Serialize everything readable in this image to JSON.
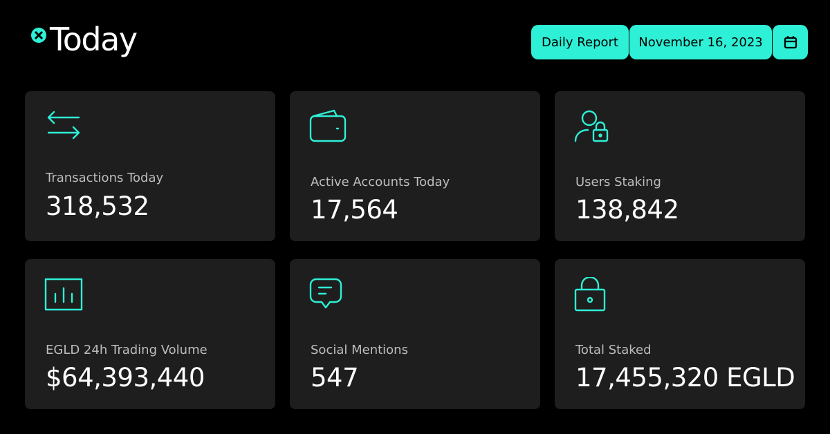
{
  "header": {
    "title": "Today",
    "report": "Daily Report",
    "date": "November 16, 2023"
  },
  "cards": [
    {
      "label": "Transactions Today",
      "value": "318,532"
    },
    {
      "label": "Active Accounts Today",
      "value": "17,564"
    },
    {
      "label": "Users Staking",
      "value": "138,842"
    },
    {
      "label": "EGLD 24h Trading Volume",
      "value": "$64,393,440"
    },
    {
      "label": "Social Mentions",
      "value": "547"
    },
    {
      "label": "Total Staked",
      "value": "17,455,320 EGLD"
    }
  ]
}
